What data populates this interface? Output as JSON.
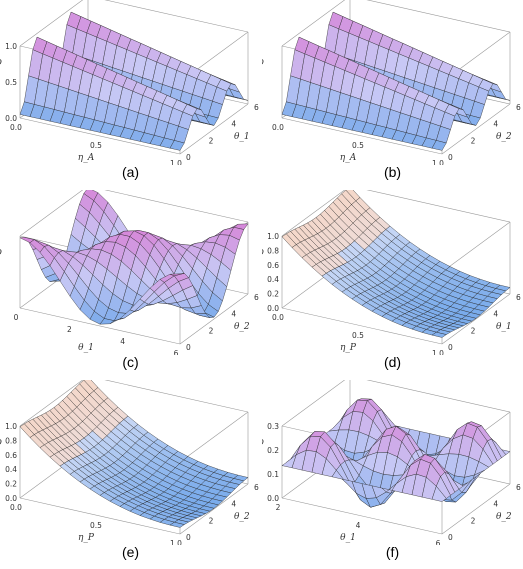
{
  "panels": [
    {
      "caption": "(a)",
      "zlabel": "F_AD",
      "xlabel": "η_A",
      "ylabel": "θ_1",
      "zticks": [
        "1.0",
        "0.5",
        "0.0"
      ],
      "xticks": [
        "0.0",
        "0.5",
        "1.0"
      ],
      "yticks": [
        "0",
        "2",
        "4",
        "6"
      ],
      "surface": "two-ridges"
    },
    {
      "caption": "(b)",
      "zlabel": "F_AD",
      "xlabel": "η_A",
      "ylabel": "θ_2",
      "zticks": [],
      "xticks": [
        "0.0",
        "0.5",
        "1.0"
      ],
      "yticks": [
        "0",
        "2",
        "4",
        "6"
      ],
      "surface": "two-ridges"
    },
    {
      "caption": "(c)",
      "zlabel": "F_AD",
      "xlabel": "θ_1",
      "ylabel": "θ_2",
      "zticks": [],
      "xticks": [
        "0",
        "2",
        "4",
        "6"
      ],
      "yticks": [
        "0",
        "2",
        "4",
        "6"
      ],
      "surface": "egg-crate"
    },
    {
      "caption": "(d)",
      "zlabel": "F_PD",
      "xlabel": "η_P",
      "ylabel": "θ_1",
      "zticks": [
        "1.0",
        "0.8",
        "0.6",
        "0.4",
        "0.2",
        "0.0"
      ],
      "xticks": [
        "0.0",
        "0.5",
        "1.0"
      ],
      "yticks": [
        "0",
        "2",
        "4",
        "6"
      ],
      "surface": "decay"
    },
    {
      "caption": "(e)",
      "zlabel": "F_PD",
      "xlabel": "η_P",
      "ylabel": "θ_2",
      "zticks": [
        "1.0",
        "0.8",
        "0.6",
        "0.4",
        "0.2",
        "0.0"
      ],
      "xticks": [
        "0.0",
        "0.5",
        "1.0"
      ],
      "yticks": [
        "0",
        "2",
        "4",
        "6"
      ],
      "surface": "decay"
    },
    {
      "caption": "(f)",
      "zlabel": "F_PD",
      "xlabel": "θ_1",
      "ylabel": "θ_2",
      "zticks": [
        "0.3",
        "0.2",
        "0.1",
        "0.0"
      ],
      "xticks": [
        "2",
        "4",
        "6"
      ],
      "yticks": [
        "0",
        "2",
        "4",
        "6"
      ],
      "surface": "bumps"
    }
  ]
}
